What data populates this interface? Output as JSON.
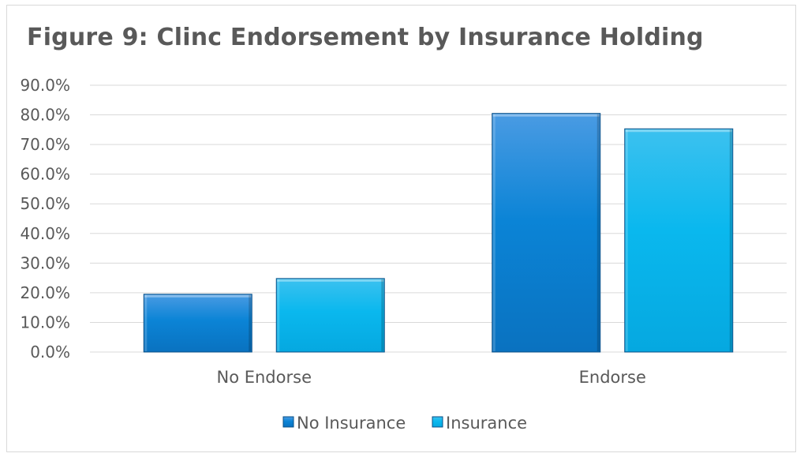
{
  "chart_data": {
    "type": "bar",
    "title": "Figure 9: Clinc Endorsement by Insurance Holding",
    "categories": [
      "No Endorse",
      "Endorse"
    ],
    "series": [
      {
        "name": "No Insurance",
        "values": [
          19.5,
          80.5
        ],
        "color": "#0b84d6"
      },
      {
        "name": "Insurance",
        "values": [
          24.8,
          75.3
        ],
        "color": "#12b5ea"
      }
    ],
    "ylim": [
      0,
      90
    ],
    "yticks": [
      "0.0%",
      "10.0%",
      "20.0%",
      "30.0%",
      "40.0%",
      "50.0%",
      "60.0%",
      "70.0%",
      "80.0%",
      "90.0%"
    ],
    "ytick_values": [
      0,
      10,
      20,
      30,
      40,
      50,
      60,
      70,
      80,
      90
    ],
    "grid": true,
    "legend_position": "bottom"
  }
}
